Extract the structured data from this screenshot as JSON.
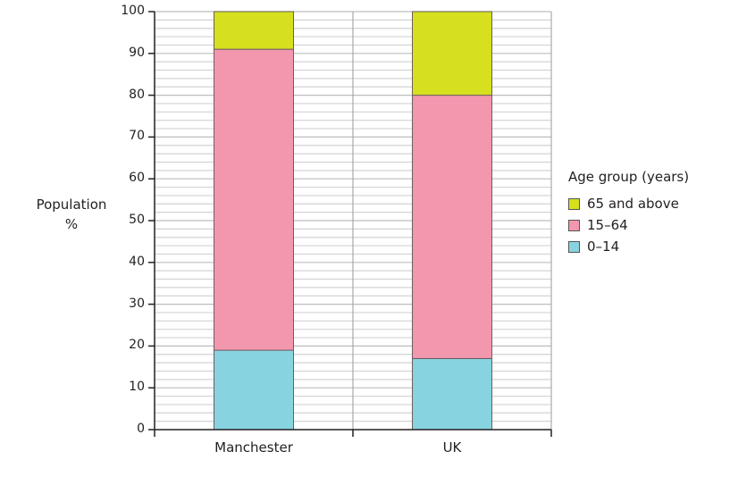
{
  "chart_data": {
    "type": "bar",
    "stacked": true,
    "title": "",
    "xlabel": "",
    "ylabel": "Population %",
    "ylabel_lines": [
      "Population",
      "%"
    ],
    "ylim": [
      0,
      100
    ],
    "yticks": [
      0,
      10,
      20,
      30,
      40,
      50,
      60,
      70,
      80,
      90,
      100
    ],
    "minor_grid_step": 2,
    "grid": true,
    "categories": [
      "Manchester",
      "UK"
    ],
    "series": [
      {
        "name": "0–14",
        "color": "#88d3e0",
        "values": [
          19,
          17
        ]
      },
      {
        "name": "15–64",
        "color": "#f397ae",
        "values": [
          72,
          63
        ]
      },
      {
        "name": "65 and above",
        "color": "#d6e01e",
        "values": [
          9,
          20
        ]
      }
    ],
    "legend": {
      "title": "Age group (years)",
      "position": "right",
      "entries": [
        "65 and above",
        "15–64",
        "0–14"
      ]
    }
  },
  "labels": {
    "ylabel_line1": "Population",
    "ylabel_line2": "%",
    "legend_title": "Age group (years)",
    "legend_items": [
      {
        "label": "65 and above",
        "color": "#d6e01e"
      },
      {
        "label": "15–64",
        "color": "#f397ae"
      },
      {
        "label": "0–14",
        "color": "#88d3e0"
      }
    ]
  }
}
